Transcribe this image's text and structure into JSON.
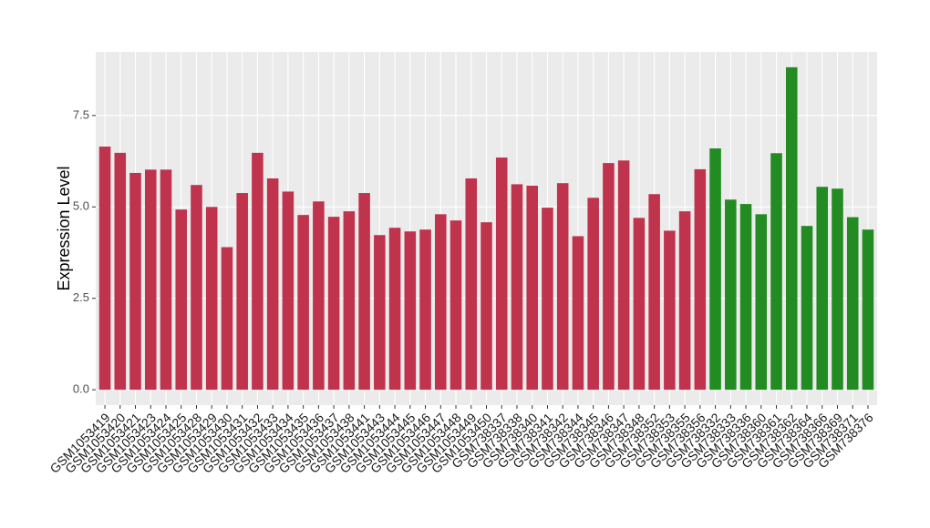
{
  "chart_data": {
    "type": "bar",
    "y_label": "Expression Level",
    "categories": [
      "GSM1053419",
      "GSM1053420",
      "GSM1053421",
      "GSM1053423",
      "GSM1053424",
      "GSM1053425",
      "GSM1053428",
      "GSM1053429",
      "GSM1053430",
      "GSM1053431",
      "GSM1053432",
      "GSM1053433",
      "GSM1053434",
      "GSM1053435",
      "GSM1053436",
      "GSM1053437",
      "GSM1053438",
      "GSM1053441",
      "GSM1053443",
      "GSM1053444",
      "GSM1053445",
      "GSM1053446",
      "GSM1053447",
      "GSM1053448",
      "GSM1053449",
      "GSM1053450",
      "GSM738337",
      "GSM738338",
      "GSM738340",
      "GSM738341",
      "GSM738342",
      "GSM738344",
      "GSM738345",
      "GSM738346",
      "GSM738347",
      "GSM738348",
      "GSM738352",
      "GSM738353",
      "GSM738355",
      "GSM738356",
      "GSM738332",
      "GSM738333",
      "GSM738336",
      "GSM738360",
      "GSM738361",
      "GSM738362",
      "GSM738364",
      "GSM738366",
      "GSM738369",
      "GSM738371",
      "GSM738376"
    ],
    "values": [
      6.65,
      6.48,
      5.93,
      6.02,
      6.02,
      4.93,
      5.6,
      5.0,
      3.9,
      5.38,
      6.48,
      5.78,
      5.42,
      4.78,
      5.15,
      4.73,
      4.88,
      5.38,
      4.23,
      4.43,
      4.33,
      4.38,
      4.8,
      4.63,
      5.78,
      4.58,
      6.35,
      5.62,
      5.58,
      4.98,
      5.65,
      4.2,
      5.25,
      6.2,
      6.27,
      4.7,
      5.35,
      4.35,
      4.88,
      6.03,
      6.6,
      5.2,
      5.08,
      4.8,
      6.47,
      8.82,
      4.48,
      5.55,
      5.5,
      4.72,
      4.38
    ],
    "colors": [
      "#c0334d",
      "#c0334d",
      "#c0334d",
      "#c0334d",
      "#c0334d",
      "#c0334d",
      "#c0334d",
      "#c0334d",
      "#c0334d",
      "#c0334d",
      "#c0334d",
      "#c0334d",
      "#c0334d",
      "#c0334d",
      "#c0334d",
      "#c0334d",
      "#c0334d",
      "#c0334d",
      "#c0334d",
      "#c0334d",
      "#c0334d",
      "#c0334d",
      "#c0334d",
      "#c0334d",
      "#c0334d",
      "#c0334d",
      "#c0334d",
      "#c0334d",
      "#c0334d",
      "#c0334d",
      "#c0334d",
      "#c0334d",
      "#c0334d",
      "#c0334d",
      "#c0334d",
      "#c0334d",
      "#c0334d",
      "#c0334d",
      "#c0334d",
      "#c0334d",
      "#228b22",
      "#228b22",
      "#228b22",
      "#228b22",
      "#228b22",
      "#228b22",
      "#228b22",
      "#228b22",
      "#228b22",
      "#228b22",
      "#228b22"
    ],
    "ylim": [
      -0.42,
      9.24
    ],
    "yticks": [
      {
        "value": 0,
        "label": "0.0"
      },
      {
        "value": 2.5,
        "label": "2.5"
      },
      {
        "value": 5,
        "label": "5.0"
      },
      {
        "value": 7.5,
        "label": "7.5"
      }
    ],
    "grid": true
  }
}
